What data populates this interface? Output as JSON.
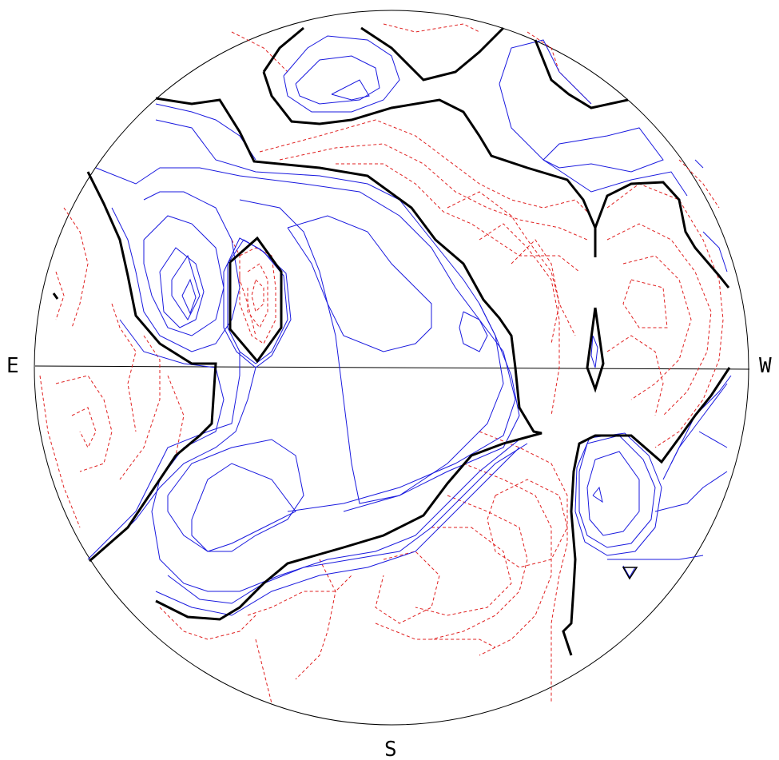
{
  "labels": {
    "east": "E",
    "west": "W",
    "south": "S"
  },
  "colors": {
    "positive_contour": "#1a1adf",
    "negative_contour": "#e02020",
    "zero_contour": "#000000",
    "frame": "#000000"
  }
}
